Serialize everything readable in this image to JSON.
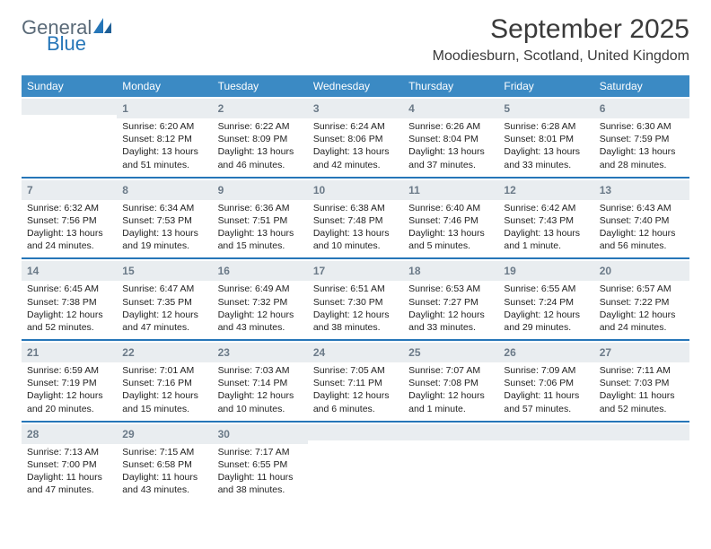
{
  "logo": {
    "word1": "General",
    "word2": "Blue"
  },
  "title": {
    "month": "September 2025",
    "location": "Moodiesburn, Scotland, United Kingdom"
  },
  "colors": {
    "header_blue": "#3b8ac4",
    "divider_blue": "#2676b8",
    "daynum_bg": "#e9edf0",
    "daynum_text": "#6b7a88",
    "text": "#2a2a2a",
    "bg": "#ffffff",
    "logo_general": "#5a6a78",
    "logo_blue": "#2676b8"
  },
  "weekdays": [
    "Sunday",
    "Monday",
    "Tuesday",
    "Wednesday",
    "Thursday",
    "Friday",
    "Saturday"
  ],
  "weeks": [
    [
      {
        "day": "",
        "sunrise": "",
        "sunset": "",
        "daylight": ""
      },
      {
        "day": "1",
        "sunrise": "Sunrise: 6:20 AM",
        "sunset": "Sunset: 8:12 PM",
        "daylight": "Daylight: 13 hours and 51 minutes."
      },
      {
        "day": "2",
        "sunrise": "Sunrise: 6:22 AM",
        "sunset": "Sunset: 8:09 PM",
        "daylight": "Daylight: 13 hours and 46 minutes."
      },
      {
        "day": "3",
        "sunrise": "Sunrise: 6:24 AM",
        "sunset": "Sunset: 8:06 PM",
        "daylight": "Daylight: 13 hours and 42 minutes."
      },
      {
        "day": "4",
        "sunrise": "Sunrise: 6:26 AM",
        "sunset": "Sunset: 8:04 PM",
        "daylight": "Daylight: 13 hours and 37 minutes."
      },
      {
        "day": "5",
        "sunrise": "Sunrise: 6:28 AM",
        "sunset": "Sunset: 8:01 PM",
        "daylight": "Daylight: 13 hours and 33 minutes."
      },
      {
        "day": "6",
        "sunrise": "Sunrise: 6:30 AM",
        "sunset": "Sunset: 7:59 PM",
        "daylight": "Daylight: 13 hours and 28 minutes."
      }
    ],
    [
      {
        "day": "7",
        "sunrise": "Sunrise: 6:32 AM",
        "sunset": "Sunset: 7:56 PM",
        "daylight": "Daylight: 13 hours and 24 minutes."
      },
      {
        "day": "8",
        "sunrise": "Sunrise: 6:34 AM",
        "sunset": "Sunset: 7:53 PM",
        "daylight": "Daylight: 13 hours and 19 minutes."
      },
      {
        "day": "9",
        "sunrise": "Sunrise: 6:36 AM",
        "sunset": "Sunset: 7:51 PM",
        "daylight": "Daylight: 13 hours and 15 minutes."
      },
      {
        "day": "10",
        "sunrise": "Sunrise: 6:38 AM",
        "sunset": "Sunset: 7:48 PM",
        "daylight": "Daylight: 13 hours and 10 minutes."
      },
      {
        "day": "11",
        "sunrise": "Sunrise: 6:40 AM",
        "sunset": "Sunset: 7:46 PM",
        "daylight": "Daylight: 13 hours and 5 minutes."
      },
      {
        "day": "12",
        "sunrise": "Sunrise: 6:42 AM",
        "sunset": "Sunset: 7:43 PM",
        "daylight": "Daylight: 13 hours and 1 minute."
      },
      {
        "day": "13",
        "sunrise": "Sunrise: 6:43 AM",
        "sunset": "Sunset: 7:40 PM",
        "daylight": "Daylight: 12 hours and 56 minutes."
      }
    ],
    [
      {
        "day": "14",
        "sunrise": "Sunrise: 6:45 AM",
        "sunset": "Sunset: 7:38 PM",
        "daylight": "Daylight: 12 hours and 52 minutes."
      },
      {
        "day": "15",
        "sunrise": "Sunrise: 6:47 AM",
        "sunset": "Sunset: 7:35 PM",
        "daylight": "Daylight: 12 hours and 47 minutes."
      },
      {
        "day": "16",
        "sunrise": "Sunrise: 6:49 AM",
        "sunset": "Sunset: 7:32 PM",
        "daylight": "Daylight: 12 hours and 43 minutes."
      },
      {
        "day": "17",
        "sunrise": "Sunrise: 6:51 AM",
        "sunset": "Sunset: 7:30 PM",
        "daylight": "Daylight: 12 hours and 38 minutes."
      },
      {
        "day": "18",
        "sunrise": "Sunrise: 6:53 AM",
        "sunset": "Sunset: 7:27 PM",
        "daylight": "Daylight: 12 hours and 33 minutes."
      },
      {
        "day": "19",
        "sunrise": "Sunrise: 6:55 AM",
        "sunset": "Sunset: 7:24 PM",
        "daylight": "Daylight: 12 hours and 29 minutes."
      },
      {
        "day": "20",
        "sunrise": "Sunrise: 6:57 AM",
        "sunset": "Sunset: 7:22 PM",
        "daylight": "Daylight: 12 hours and 24 minutes."
      }
    ],
    [
      {
        "day": "21",
        "sunrise": "Sunrise: 6:59 AM",
        "sunset": "Sunset: 7:19 PM",
        "daylight": "Daylight: 12 hours and 20 minutes."
      },
      {
        "day": "22",
        "sunrise": "Sunrise: 7:01 AM",
        "sunset": "Sunset: 7:16 PM",
        "daylight": "Daylight: 12 hours and 15 minutes."
      },
      {
        "day": "23",
        "sunrise": "Sunrise: 7:03 AM",
        "sunset": "Sunset: 7:14 PM",
        "daylight": "Daylight: 12 hours and 10 minutes."
      },
      {
        "day": "24",
        "sunrise": "Sunrise: 7:05 AM",
        "sunset": "Sunset: 7:11 PM",
        "daylight": "Daylight: 12 hours and 6 minutes."
      },
      {
        "day": "25",
        "sunrise": "Sunrise: 7:07 AM",
        "sunset": "Sunset: 7:08 PM",
        "daylight": "Daylight: 12 hours and 1 minute."
      },
      {
        "day": "26",
        "sunrise": "Sunrise: 7:09 AM",
        "sunset": "Sunset: 7:06 PM",
        "daylight": "Daylight: 11 hours and 57 minutes."
      },
      {
        "day": "27",
        "sunrise": "Sunrise: 7:11 AM",
        "sunset": "Sunset: 7:03 PM",
        "daylight": "Daylight: 11 hours and 52 minutes."
      }
    ],
    [
      {
        "day": "28",
        "sunrise": "Sunrise: 7:13 AM",
        "sunset": "Sunset: 7:00 PM",
        "daylight": "Daylight: 11 hours and 47 minutes."
      },
      {
        "day": "29",
        "sunrise": "Sunrise: 7:15 AM",
        "sunset": "Sunset: 6:58 PM",
        "daylight": "Daylight: 11 hours and 43 minutes."
      },
      {
        "day": "30",
        "sunrise": "Sunrise: 7:17 AM",
        "sunset": "Sunset: 6:55 PM",
        "daylight": "Daylight: 11 hours and 38 minutes."
      },
      {
        "day": "",
        "sunrise": "",
        "sunset": "",
        "daylight": ""
      },
      {
        "day": "",
        "sunrise": "",
        "sunset": "",
        "daylight": ""
      },
      {
        "day": "",
        "sunrise": "",
        "sunset": "",
        "daylight": ""
      },
      {
        "day": "",
        "sunrise": "",
        "sunset": "",
        "daylight": ""
      }
    ]
  ]
}
